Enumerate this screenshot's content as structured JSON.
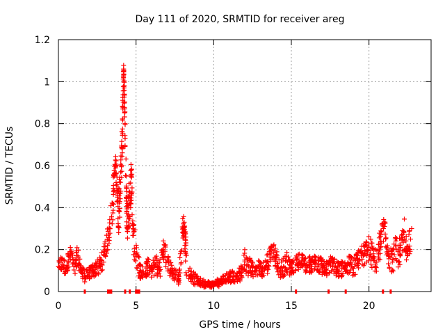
{
  "chart_data": {
    "type": "scatter",
    "title": "Day 111 of 2020, SRMTID for receiver areg",
    "xlabel": "GPS time / hours",
    "ylabel": "SRMTID / TECUs",
    "xlim": [
      0,
      24
    ],
    "ylim": [
      0,
      1.2
    ],
    "x_ticks": [
      0,
      5,
      10,
      15,
      20
    ],
    "y_ticks": [
      0,
      0.2,
      0.4,
      0.6,
      0.8,
      1,
      1.2
    ],
    "x_tick_labels": [
      "0",
      "5",
      "10",
      "15",
      "20"
    ],
    "y_tick_labels": [
      "0",
      "0.2",
      "0.4",
      "0.6",
      "0.8",
      "1",
      "1.2"
    ],
    "grid": true,
    "marker": "+",
    "series_color": "#ff0000",
    "profile_description": "Baseline ~0.1 TECU with a strong peak 3.5-4.8 h (max ~1.06 at 4.2 h), a smaller spike ~0.33 at 8.1 h, a minimum ~0.03 near 9-10 h, and increased scatter 20-23 h up to ~0.32.",
    "series": [
      {
        "name": "SRMTID",
        "x": [
          0.0,
          0.25,
          0.5,
          0.75,
          1.0,
          1.25,
          1.5,
          1.75,
          2.0,
          2.25,
          2.5,
          2.75,
          3.0,
          3.25,
          3.5,
          3.6,
          3.7,
          3.8,
          3.9,
          4.0,
          4.1,
          4.15,
          4.2,
          4.25,
          4.3,
          4.4,
          4.5,
          4.6,
          4.7,
          4.8,
          5.0,
          5.25,
          5.5,
          5.75,
          6.0,
          6.25,
          6.5,
          6.75,
          7.0,
          7.25,
          7.5,
          7.75,
          8.0,
          8.1,
          8.2,
          8.5,
          8.75,
          9.0,
          9.25,
          9.5,
          9.75,
          10.0,
          10.25,
          10.5,
          10.75,
          11.0,
          11.25,
          11.5,
          11.75,
          12.0,
          12.25,
          12.5,
          12.75,
          13.0,
          13.25,
          13.5,
          13.75,
          14.0,
          14.25,
          14.5,
          14.75,
          15.0,
          15.25,
          15.5,
          15.75,
          16.0,
          16.25,
          16.5,
          16.75,
          17.0,
          17.25,
          17.5,
          17.75,
          18.0,
          18.25,
          18.5,
          18.75,
          19.0,
          19.25,
          19.5,
          19.75,
          20.0,
          20.25,
          20.5,
          20.75,
          21.0,
          21.25,
          21.5,
          21.75,
          22.0,
          22.25,
          22.5,
          22.75
        ],
        "y": [
          0.12,
          0.13,
          0.11,
          0.18,
          0.12,
          0.17,
          0.09,
          0.07,
          0.09,
          0.1,
          0.11,
          0.13,
          0.2,
          0.27,
          0.42,
          0.55,
          0.6,
          0.48,
          0.38,
          0.52,
          0.68,
          0.87,
          1.06,
          0.94,
          0.73,
          0.38,
          0.35,
          0.45,
          0.55,
          0.3,
          0.18,
          0.1,
          0.08,
          0.12,
          0.1,
          0.13,
          0.1,
          0.2,
          0.15,
          0.1,
          0.08,
          0.06,
          0.28,
          0.33,
          0.18,
          0.08,
          0.06,
          0.05,
          0.04,
          0.04,
          0.03,
          0.03,
          0.04,
          0.05,
          0.06,
          0.07,
          0.07,
          0.06,
          0.09,
          0.15,
          0.12,
          0.1,
          0.11,
          0.12,
          0.1,
          0.14,
          0.2,
          0.16,
          0.1,
          0.12,
          0.14,
          0.11,
          0.13,
          0.14,
          0.16,
          0.12,
          0.13,
          0.14,
          0.13,
          0.12,
          0.1,
          0.13,
          0.12,
          0.1,
          0.11,
          0.12,
          0.13,
          0.11,
          0.14,
          0.17,
          0.18,
          0.21,
          0.16,
          0.14,
          0.24,
          0.31,
          0.17,
          0.14,
          0.2,
          0.17,
          0.28,
          0.18,
          0.3
        ],
        "spread": [
          0.03,
          0.04,
          0.04,
          0.04,
          0.05,
          0.05,
          0.03,
          0.03,
          0.03,
          0.03,
          0.04,
          0.05,
          0.05,
          0.06,
          0.1,
          0.06,
          0.05,
          0.12,
          0.12,
          0.1,
          0.1,
          0.12,
          0.02,
          0.06,
          0.1,
          0.12,
          0.12,
          0.12,
          0.1,
          0.12,
          0.08,
          0.04,
          0.04,
          0.04,
          0.04,
          0.05,
          0.05,
          0.05,
          0.06,
          0.04,
          0.03,
          0.03,
          0.08,
          0.03,
          0.1,
          0.03,
          0.03,
          0.02,
          0.02,
          0.02,
          0.02,
          0.02,
          0.02,
          0.02,
          0.02,
          0.03,
          0.03,
          0.03,
          0.04,
          0.06,
          0.05,
          0.04,
          0.04,
          0.04,
          0.04,
          0.05,
          0.04,
          0.05,
          0.04,
          0.05,
          0.05,
          0.04,
          0.04,
          0.04,
          0.04,
          0.04,
          0.04,
          0.04,
          0.04,
          0.04,
          0.04,
          0.04,
          0.04,
          0.04,
          0.04,
          0.04,
          0.05,
          0.04,
          0.05,
          0.05,
          0.06,
          0.07,
          0.06,
          0.06,
          0.08,
          0.04,
          0.07,
          0.05,
          0.08,
          0.08,
          0.08,
          0.06,
          0.08
        ]
      }
    ],
    "zero_markers_x": [
      1.7,
      3.2,
      3.3,
      3.4,
      4.3,
      4.6,
      5.0,
      5.1,
      5.2,
      15.3,
      17.4,
      18.5,
      20.9,
      21.4
    ]
  }
}
